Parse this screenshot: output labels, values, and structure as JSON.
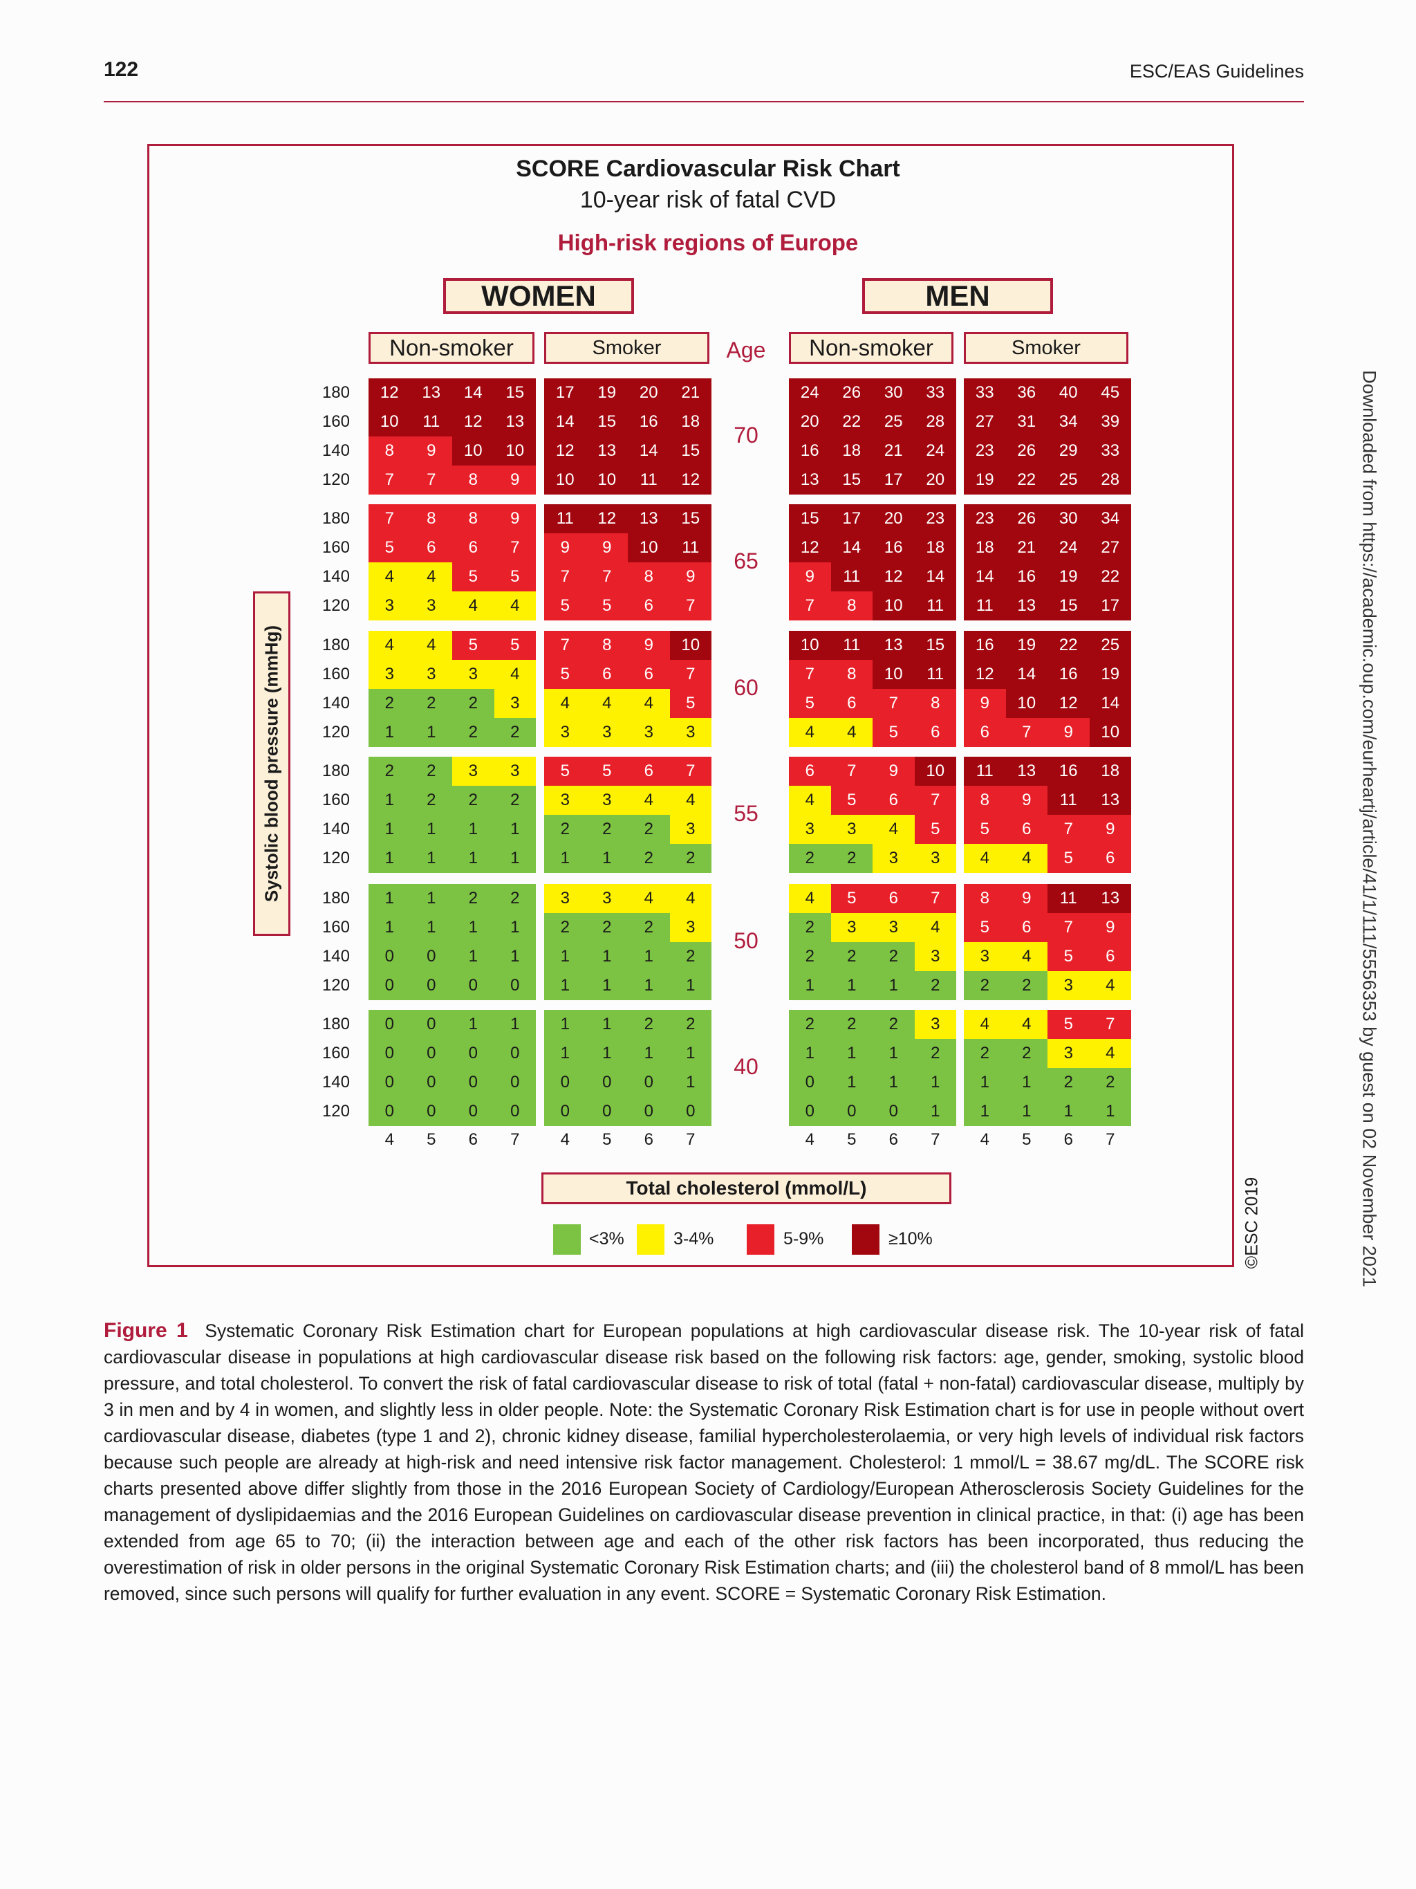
{
  "header": {
    "page_number": "122",
    "running_head": "ESC/EAS Guidelines"
  },
  "chart": {
    "title": "SCORE Cardiovascular Risk Chart",
    "subtitle": "10-year risk of fatal CVD",
    "region": "High-risk regions of Europe",
    "sexes": [
      "WOMEN",
      "MEN"
    ],
    "smoking_status": [
      "Non-smoker",
      "Smoker"
    ],
    "age_label": "Age",
    "ages": [
      "70",
      "65",
      "60",
      "55",
      "50",
      "40"
    ],
    "bp_values": [
      "180",
      "160",
      "140",
      "120"
    ],
    "cholesterol_values": [
      "4",
      "5",
      "6",
      "7"
    ],
    "y_axis_label": "Systolic blood pressure (mmHg)",
    "x_axis_label": "Total cholesterol (mmol/L)",
    "legend": [
      {
        "label": "<3%",
        "color": "#7cc243"
      },
      {
        "label": "3-4%",
        "color": "#fff200"
      },
      {
        "label": "5-9%",
        "color": "#e8202a"
      },
      {
        "label": "≥10%",
        "color": "#a2070f"
      }
    ],
    "copyright": "©ESC 2019"
  },
  "chart_data": {
    "type": "heatmap",
    "title": "SCORE Cardiovascular Risk Chart",
    "subtitle": "10-year risk of fatal CVD",
    "x": [
      4,
      5,
      6,
      7
    ],
    "y": [
      180,
      160,
      140,
      120
    ],
    "xlabel": "Total cholesterol (mmol/L)",
    "ylabel": "Systolic blood pressure (mmHg)",
    "panels": [
      {
        "sex": "WOMEN",
        "smoking": "Non-smoker",
        "ages": [
          {
            "age": 70,
            "values": [
              [
                12,
                13,
                14,
                15
              ],
              [
                10,
                11,
                12,
                13
              ],
              [
                8,
                9,
                10,
                10
              ],
              [
                7,
                7,
                8,
                9
              ]
            ]
          },
          {
            "age": 65,
            "values": [
              [
                7,
                8,
                8,
                9
              ],
              [
                5,
                6,
                6,
                7
              ],
              [
                4,
                4,
                5,
                5
              ],
              [
                3,
                3,
                4,
                4
              ]
            ]
          },
          {
            "age": 60,
            "values": [
              [
                4,
                4,
                5,
                5
              ],
              [
                3,
                3,
                3,
                4
              ],
              [
                2,
                2,
                2,
                3
              ],
              [
                1,
                1,
                2,
                2
              ]
            ]
          },
          {
            "age": 55,
            "values": [
              [
                2,
                2,
                3,
                3
              ],
              [
                1,
                2,
                2,
                2
              ],
              [
                1,
                1,
                1,
                1
              ],
              [
                1,
                1,
                1,
                1
              ]
            ]
          },
          {
            "age": 50,
            "values": [
              [
                1,
                1,
                2,
                2
              ],
              [
                1,
                1,
                1,
                1
              ],
              [
                0,
                0,
                1,
                1
              ],
              [
                0,
                0,
                0,
                0
              ]
            ]
          },
          {
            "age": 40,
            "values": [
              [
                0,
                0,
                1,
                1
              ],
              [
                0,
                0,
                0,
                0
              ],
              [
                0,
                0,
                0,
                0
              ],
              [
                0,
                0,
                0,
                0
              ]
            ]
          }
        ]
      },
      {
        "sex": "WOMEN",
        "smoking": "Smoker",
        "ages": [
          {
            "age": 70,
            "values": [
              [
                17,
                19,
                20,
                21
              ],
              [
                14,
                15,
                16,
                18
              ],
              [
                12,
                13,
                14,
                15
              ],
              [
                10,
                10,
                11,
                12
              ]
            ]
          },
          {
            "age": 65,
            "values": [
              [
                11,
                12,
                13,
                15
              ],
              [
                9,
                9,
                10,
                11
              ],
              [
                7,
                7,
                8,
                9
              ],
              [
                5,
                5,
                6,
                7
              ]
            ]
          },
          {
            "age": 60,
            "values": [
              [
                7,
                8,
                9,
                10
              ],
              [
                5,
                6,
                6,
                7
              ],
              [
                4,
                4,
                4,
                5
              ],
              [
                3,
                3,
                3,
                3
              ]
            ]
          },
          {
            "age": 55,
            "values": [
              [
                5,
                5,
                6,
                7
              ],
              [
                3,
                3,
                4,
                4
              ],
              [
                2,
                2,
                2,
                3
              ],
              [
                1,
                1,
                2,
                2
              ]
            ]
          },
          {
            "age": 50,
            "values": [
              [
                3,
                3,
                4,
                4
              ],
              [
                2,
                2,
                2,
                3
              ],
              [
                1,
                1,
                1,
                2
              ],
              [
                1,
                1,
                1,
                1
              ]
            ]
          },
          {
            "age": 40,
            "values": [
              [
                1,
                1,
                2,
                2
              ],
              [
                1,
                1,
                1,
                1
              ],
              [
                0,
                0,
                0,
                1
              ],
              [
                0,
                0,
                0,
                0
              ]
            ]
          }
        ]
      },
      {
        "sex": "MEN",
        "smoking": "Non-smoker",
        "ages": [
          {
            "age": 70,
            "values": [
              [
                24,
                26,
                30,
                33
              ],
              [
                20,
                22,
                25,
                28
              ],
              [
                16,
                18,
                21,
                24
              ],
              [
                13,
                15,
                17,
                20
              ]
            ]
          },
          {
            "age": 65,
            "values": [
              [
                15,
                17,
                20,
                23
              ],
              [
                12,
                14,
                16,
                18
              ],
              [
                9,
                11,
                12,
                14
              ],
              [
                7,
                8,
                10,
                11
              ]
            ]
          },
          {
            "age": 60,
            "values": [
              [
                10,
                11,
                13,
                15
              ],
              [
                7,
                8,
                10,
                11
              ],
              [
                5,
                6,
                7,
                8
              ],
              [
                4,
                4,
                5,
                6
              ]
            ]
          },
          {
            "age": 55,
            "values": [
              [
                6,
                7,
                9,
                10
              ],
              [
                4,
                5,
                6,
                7
              ],
              [
                3,
                3,
                4,
                5
              ],
              [
                2,
                2,
                3,
                3
              ]
            ]
          },
          {
            "age": 50,
            "values": [
              [
                4,
                5,
                6,
                7
              ],
              [
                2,
                3,
                3,
                4
              ],
              [
                2,
                2,
                2,
                3
              ],
              [
                1,
                1,
                1,
                2
              ]
            ]
          },
          {
            "age": 40,
            "values": [
              [
                2,
                2,
                2,
                3
              ],
              [
                1,
                1,
                1,
                2
              ],
              [
                0,
                1,
                1,
                1
              ],
              [
                0,
                0,
                0,
                1
              ]
            ]
          }
        ]
      },
      {
        "sex": "MEN",
        "smoking": "Smoker",
        "ages": [
          {
            "age": 70,
            "values": [
              [
                33,
                36,
                40,
                45
              ],
              [
                27,
                31,
                34,
                39
              ],
              [
                23,
                26,
                29,
                33
              ],
              [
                19,
                22,
                25,
                28
              ]
            ]
          },
          {
            "age": 65,
            "values": [
              [
                23,
                26,
                30,
                34
              ],
              [
                18,
                21,
                24,
                27
              ],
              [
                14,
                16,
                19,
                22
              ],
              [
                11,
                13,
                15,
                17
              ]
            ]
          },
          {
            "age": 60,
            "values": [
              [
                16,
                19,
                22,
                25
              ],
              [
                12,
                14,
                16,
                19
              ],
              [
                9,
                10,
                12,
                14
              ],
              [
                6,
                7,
                9,
                10
              ]
            ]
          },
          {
            "age": 55,
            "values": [
              [
                11,
                13,
                16,
                18
              ],
              [
                8,
                9,
                11,
                13
              ],
              [
                5,
                6,
                7,
                9
              ],
              [
                4,
                4,
                5,
                6
              ]
            ]
          },
          {
            "age": 50,
            "values": [
              [
                8,
                9,
                11,
                13
              ],
              [
                5,
                6,
                7,
                9
              ],
              [
                3,
                4,
                5,
                6
              ],
              [
                2,
                2,
                3,
                4
              ]
            ]
          },
          {
            "age": 40,
            "values": [
              [
                4,
                4,
                5,
                7
              ],
              [
                2,
                2,
                3,
                4
              ],
              [
                1,
                1,
                2,
                2
              ],
              [
                1,
                1,
                1,
                1
              ]
            ]
          }
        ]
      }
    ],
    "legend": [
      "<3%",
      "3-4%",
      "5-9%",
      "≥10%"
    ]
  },
  "caption": {
    "label": "Figure 1",
    "text": "Systematic Coronary Risk Estimation chart for European populations at high cardiovascular disease risk. The 10-year risk of fatal cardiovascular disease in populations at high cardiovascular disease risk based on the following risk factors: age, gender, smoking, systolic blood pressure, and total cholesterol. To convert the risk of fatal cardiovascular disease to risk of total (fatal + non-fatal) cardiovascular disease, multiply by 3 in men and by 4 in women, and slightly less in older people. Note: the Systematic Coronary Risk Estimation chart is for use in people without overt cardiovascular disease, diabetes (type 1 and 2), chronic kidney disease, familial hypercholesterolaemia, or very high levels of individual risk factors because such people are already at high-risk and need intensive risk factor management. Cholesterol: 1 mmol/L = 38.67 mg/dL. The SCORE risk charts presented above differ slightly from those in the 2016 European Society of Cardiology/European Atherosclerosis Society Guidelines for the management of dyslipidaemias and the 2016 European Guidelines on cardiovascular disease prevention in clinical practice, in that: (i) age has been extended from age 65 to 70; (ii) the interaction between age and each of the other risk factors has been incorporated, thus reducing the overestimation of risk in older persons in the original Systematic Coronary Risk Estimation charts; and (iii) the cholesterol band of 8 mmol/L has been removed, since such persons will qualify for further evaluation in any event. SCORE = Systematic Coronary Risk Estimation."
  },
  "side_note": "Downloaded from https://academic.oup.com/eurheartj/article/41/1/111/5556353 by guest on 02 November 2021"
}
